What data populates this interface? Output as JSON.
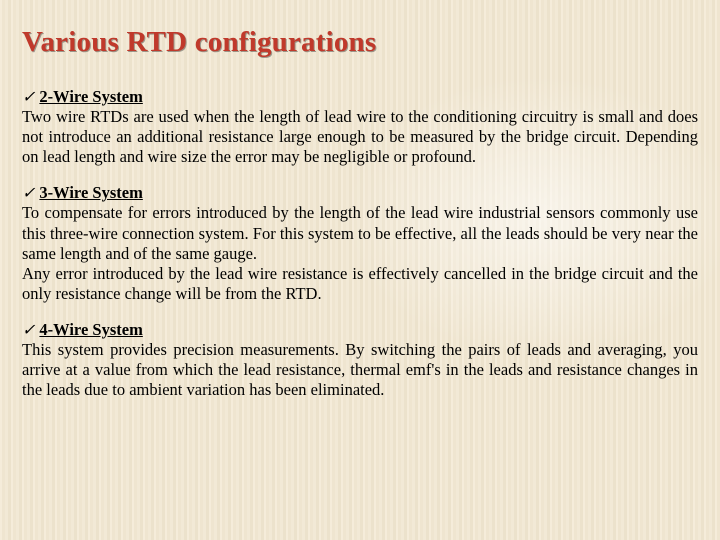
{
  "title": "Various RTD configurations",
  "title_color": "#c0392b",
  "title_fontsize": 29,
  "background_base": "#f2e9d6",
  "body_fontsize": 16.5,
  "check_glyph": "✓",
  "sections": [
    {
      "heading": " 2-Wire System",
      "body": "Two wire RTDs are used when the length of lead wire to the conditioning circuitry is small and does not introduce an additional resistance large enough to be measured by the bridge circuit.  Depending on lead length and wire size the error may be negligible or profound."
    },
    {
      "heading": "3-Wire System",
      "body": "To compensate for errors introduced by the length of the lead wire industrial sensors commonly use this three-wire connection system. For this system to be effective, all the leads should be very near the same length and of the same gauge.\nAny error introduced by the lead wire resistance is effectively cancelled in the bridge circuit and the only resistance change will be from the RTD."
    },
    {
      "heading": "4-Wire System",
      "body": "This system provides precision measurements. By switching the pairs of leads and averaging, you arrive at a value from which the lead resistance, thermal emf's in the leads and resistance changes in the leads due to ambient variation has been eliminated."
    }
  ]
}
